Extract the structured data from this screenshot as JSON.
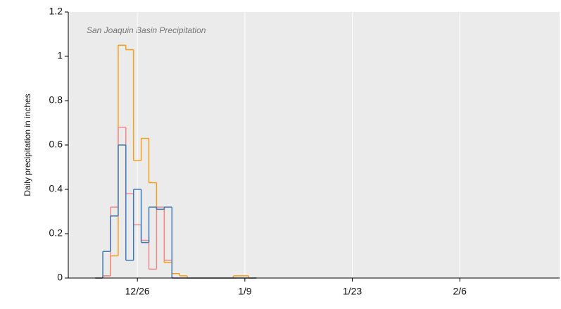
{
  "chart_data": {
    "type": "step",
    "annotation": "San Joaquin Basin Precipitation",
    "y_label": "Daily precipitation in inches",
    "x": [
      "12/21",
      "12/22",
      "12/23",
      "12/24",
      "12/25",
      "12/26",
      "12/27",
      "12/28",
      "12/29",
      "12/30",
      "12/31",
      "1/1",
      "1/2",
      "1/3",
      "1/4",
      "1/5",
      "1/6",
      "1/7",
      "1/8",
      "1/9",
      "1/10"
    ],
    "series": [
      {
        "color": "#f5a01a",
        "values": [
          0,
          0.01,
          0.1,
          1.05,
          1.03,
          0.53,
          0.63,
          0.43,
          0.31,
          0.07,
          0.02,
          0.01,
          0,
          0,
          0,
          0,
          0,
          0,
          0.01,
          0.01,
          0
        ]
      },
      {
        "color": "#f08a8a",
        "values": [
          0,
          0.01,
          0.32,
          0.68,
          0.38,
          0.24,
          0.17,
          0.04,
          0.32,
          0.08,
          0,
          0,
          0,
          0,
          0,
          0,
          0,
          0,
          0,
          0,
          0
        ]
      },
      {
        "color": "#3f7ab6",
        "values": [
          0,
          0.12,
          0.28,
          0.6,
          0.08,
          0.4,
          0.16,
          0.32,
          0.31,
          0.32,
          0,
          0,
          0,
          0,
          0,
          0,
          0,
          0,
          0,
          0,
          0
        ]
      }
    ],
    "xlim": [
      "12/17",
      "2/19"
    ],
    "xticks": [
      "12/26",
      "1/9",
      "1/23",
      "2/6"
    ],
    "ylim": [
      0,
      1.2
    ],
    "yticks": [
      0,
      0.2,
      0.4,
      0.6,
      0.8,
      1,
      1.2
    ],
    "grid": true,
    "background": "#ebebeb"
  }
}
